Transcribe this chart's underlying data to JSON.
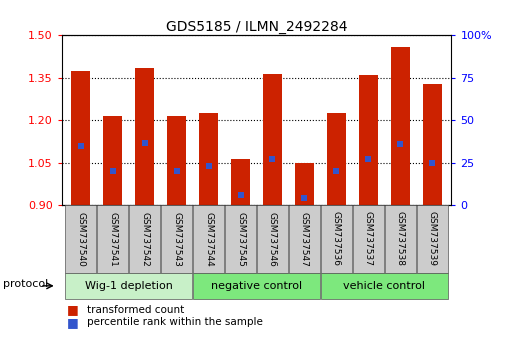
{
  "title": "GDS5185 / ILMN_2492284",
  "samples": [
    "GSM737540",
    "GSM737541",
    "GSM737542",
    "GSM737543",
    "GSM737544",
    "GSM737545",
    "GSM737546",
    "GSM737547",
    "GSM737536",
    "GSM737537",
    "GSM737538",
    "GSM737539"
  ],
  "bar_values": [
    1.375,
    1.215,
    1.385,
    1.215,
    1.225,
    1.065,
    1.365,
    1.05,
    1.225,
    1.36,
    1.46,
    1.33
  ],
  "percentile_values": [
    1.11,
    1.02,
    1.12,
    1.02,
    1.04,
    0.935,
    1.065,
    0.925,
    1.02,
    1.065,
    1.115,
    1.05
  ],
  "ylim": [
    0.9,
    1.5
  ],
  "yticks": [
    0.9,
    1.05,
    1.2,
    1.35,
    1.5
  ],
  "right_yticks": [
    0,
    25,
    50,
    75,
    100
  ],
  "bar_color": "#cc2200",
  "percentile_color": "#3355cc",
  "group_colors": [
    "#c8f0c8",
    "#7de87d",
    "#7de87d"
  ],
  "groups": [
    {
      "label": "Wig-1 depletion",
      "start": 0,
      "end": 4
    },
    {
      "label": "negative control",
      "start": 4,
      "end": 8
    },
    {
      "label": "vehicle control",
      "start": 8,
      "end": 12
    }
  ],
  "legend_labels": [
    "transformed count",
    "percentile rank within the sample"
  ],
  "protocol_label": "protocol"
}
